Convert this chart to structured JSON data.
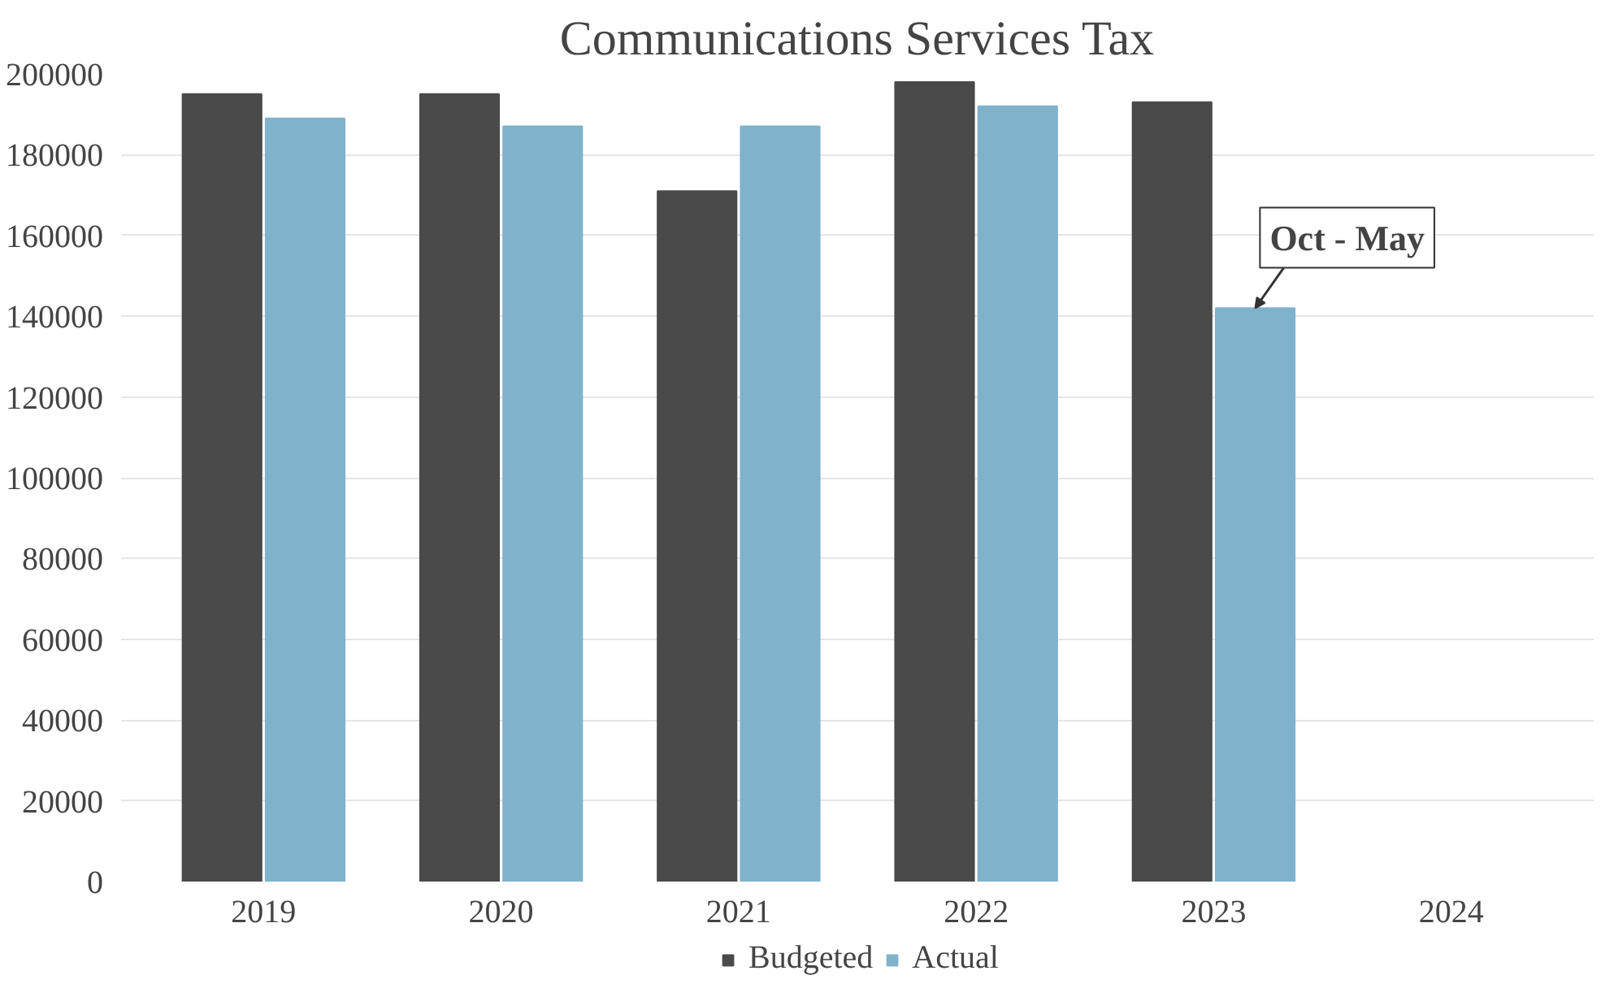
{
  "chart_data": {
    "type": "bar",
    "title": "Communications Services Tax",
    "categories": [
      "2019",
      "2020",
      "2021",
      "2022",
      "2023",
      "2024"
    ],
    "series": [
      {
        "name": "Budgeted",
        "color": "#4a4a4a",
        "values": [
          195000,
          195000,
          171000,
          198000,
          193000,
          null
        ]
      },
      {
        "name": "Actual",
        "color": "#7fb3cc",
        "values": [
          189000,
          187000,
          187000,
          192000,
          142000,
          null
        ]
      }
    ],
    "ylim": [
      0,
      200000
    ],
    "yticks": [
      0,
      20000,
      40000,
      60000,
      80000,
      100000,
      120000,
      140000,
      160000,
      180000,
      200000
    ],
    "grid": "y",
    "legend": "bottom",
    "annotations": [
      {
        "text": "Oct - May",
        "x": "2023",
        "y": 142000
      }
    ]
  }
}
